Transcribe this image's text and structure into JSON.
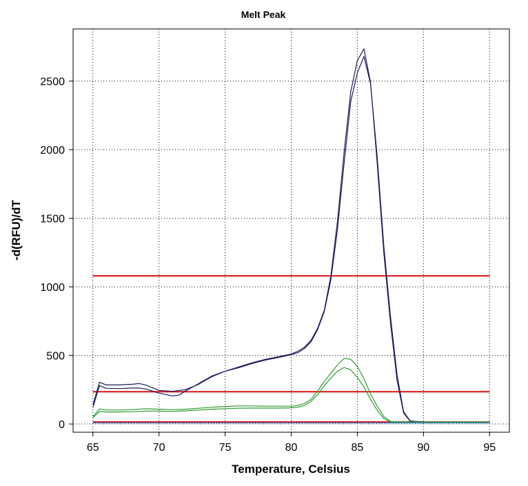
{
  "chart_data": {
    "type": "line",
    "title": "Melt Peak",
    "xlabel": "Temperature, Celsius",
    "ylabel": "-d(RFU)/dT",
    "xlim": [
      63.5,
      96.5
    ],
    "ylim": [
      -60,
      2880
    ],
    "xticks": [
      65,
      70,
      75,
      80,
      85,
      90,
      95
    ],
    "yticks": [
      0,
      500,
      1000,
      1500,
      2000,
      2500
    ],
    "grid": true,
    "legend": "none",
    "colors": {
      "navy": "#1c1c5c",
      "green": "#2e9a2e",
      "red": "#dd1111",
      "lightblue": "#3a7fd0"
    },
    "thresholds": [
      {
        "y": 1080,
        "color": "#dd1111"
      },
      {
        "y": 235,
        "color": "#dd1111"
      },
      {
        "y": 15,
        "color": "#dd1111"
      }
    ],
    "series": [
      {
        "color": "#1c1c5c",
        "x": [
          65,
          65.5,
          66,
          67,
          68,
          68.5,
          69,
          70,
          71,
          72,
          73,
          74,
          75,
          76,
          77,
          78,
          79,
          80,
          80.5,
          81,
          81.5,
          82,
          82.5,
          83,
          83.5,
          84,
          84.5,
          85,
          85.5,
          86,
          86.5,
          87,
          87.5,
          88,
          88.5,
          89,
          90,
          95
        ],
        "y": [
          140,
          305,
          285,
          285,
          290,
          295,
          285,
          245,
          238,
          250,
          290,
          345,
          385,
          415,
          445,
          470,
          490,
          510,
          530,
          560,
          610,
          700,
          830,
          1080,
          1480,
          1980,
          2420,
          2650,
          2735,
          2490,
          1900,
          1250,
          740,
          320,
          80,
          20,
          15,
          15
        ]
      },
      {
        "color": "#1c1c5c",
        "x": [
          65,
          65.5,
          66,
          67,
          68,
          68.5,
          69,
          70,
          71,
          71.5,
          72,
          73,
          74,
          75,
          76,
          77,
          78,
          79,
          80,
          80.5,
          81,
          81.5,
          82,
          82.5,
          83,
          83.5,
          84,
          84.5,
          85,
          85.5,
          86,
          86.5,
          87,
          87.5,
          88,
          88.5,
          89,
          90,
          95
        ],
        "y": [
          120,
          280,
          260,
          258,
          262,
          262,
          255,
          225,
          205,
          210,
          240,
          295,
          350,
          385,
          410,
          440,
          465,
          485,
          505,
          520,
          550,
          600,
          690,
          820,
          1050,
          1420,
          1900,
          2350,
          2560,
          2680,
          2480,
          1950,
          1300,
          790,
          360,
          90,
          22,
          15,
          15
        ]
      },
      {
        "color": "#2e9a2e",
        "x": [
          65,
          65.5,
          66,
          67,
          68,
          69,
          70,
          71,
          72,
          73,
          74,
          75,
          76,
          77,
          78,
          79,
          80,
          80.5,
          81,
          81.5,
          82,
          82.5,
          83,
          83.5,
          84,
          84.5,
          85,
          85.5,
          86,
          86.5,
          87,
          87.5,
          88,
          89,
          90,
          95
        ],
        "y": [
          55,
          110,
          102,
          102,
          105,
          112,
          108,
          105,
          108,
          115,
          122,
          128,
          132,
          132,
          130,
          130,
          130,
          135,
          150,
          180,
          240,
          310,
          370,
          430,
          478,
          472,
          420,
          330,
          220,
          130,
          55,
          20,
          15,
          15,
          15,
          15
        ]
      },
      {
        "color": "#2e9a2e",
        "x": [
          65,
          65.5,
          66,
          67,
          68,
          69,
          70,
          71,
          72,
          73,
          74,
          75,
          76,
          77,
          78,
          79,
          80,
          80.5,
          81,
          81.5,
          82,
          82.5,
          83,
          83.5,
          84,
          84.5,
          85,
          85.5,
          86,
          86.5,
          87,
          87.5,
          88,
          89,
          90,
          95
        ],
        "y": [
          45,
          92,
          88,
          88,
          90,
          95,
          94,
          92,
          96,
          102,
          108,
          112,
          115,
          116,
          116,
          116,
          118,
          122,
          135,
          165,
          215,
          280,
          335,
          385,
          412,
          395,
          340,
          270,
          180,
          100,
          40,
          15,
          10,
          10,
          10,
          10
        ]
      },
      {
        "color": "#3a7fd0",
        "x": [
          65,
          70,
          75,
          80,
          85,
          90,
          95
        ],
        "y": [
          8,
          8,
          8,
          8,
          8,
          8,
          8
        ]
      }
    ]
  }
}
